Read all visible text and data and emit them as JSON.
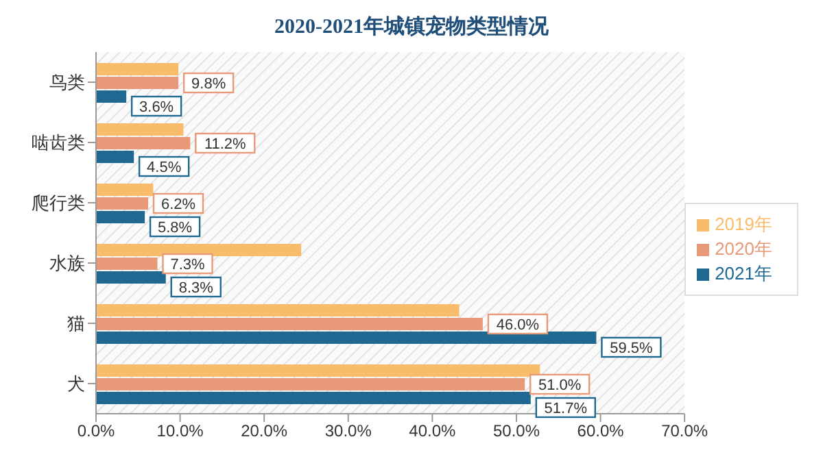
{
  "chart_data": {
    "type": "bar",
    "orientation": "horizontal",
    "title": "2020-2021年城镇宠物类型情况",
    "categories": [
      "鸟类",
      "啮齿类",
      "爬行类",
      "水族",
      "猫",
      "犬"
    ],
    "series": [
      {
        "name": "2019年",
        "color": "#f9bc6a",
        "values": [
          9.8,
          10.4,
          6.8,
          24.4,
          43.2,
          52.8
        ]
      },
      {
        "name": "2020年",
        "color": "#e89a78",
        "values": [
          9.8,
          11.2,
          6.2,
          7.3,
          46.0,
          51.0
        ],
        "value_labels": [
          "9.8%",
          "11.2%",
          "6.2%",
          "7.3%",
          "46.0%",
          "51.0%"
        ]
      },
      {
        "name": "2021年",
        "color": "#1f6891",
        "values": [
          3.6,
          4.5,
          5.8,
          8.3,
          59.5,
          51.7
        ],
        "value_labels": [
          "3.6%",
          "4.5%",
          "5.8%",
          "8.3%",
          "59.5%",
          "51.7%"
        ]
      }
    ],
    "xlim": [
      0,
      70
    ],
    "xticks": [
      {
        "value": 0,
        "label": "0.0%"
      },
      {
        "value": 10,
        "label": "10.0%"
      },
      {
        "value": 20,
        "label": "20.0%"
      },
      {
        "value": 30,
        "label": "30.0%"
      },
      {
        "value": 40,
        "label": "40.0%"
      },
      {
        "value": 50,
        "label": "50.0%"
      },
      {
        "value": 60,
        "label": "60.0%"
      },
      {
        "value": 70,
        "label": "70.0%"
      }
    ],
    "grid": false,
    "legend": "right"
  }
}
